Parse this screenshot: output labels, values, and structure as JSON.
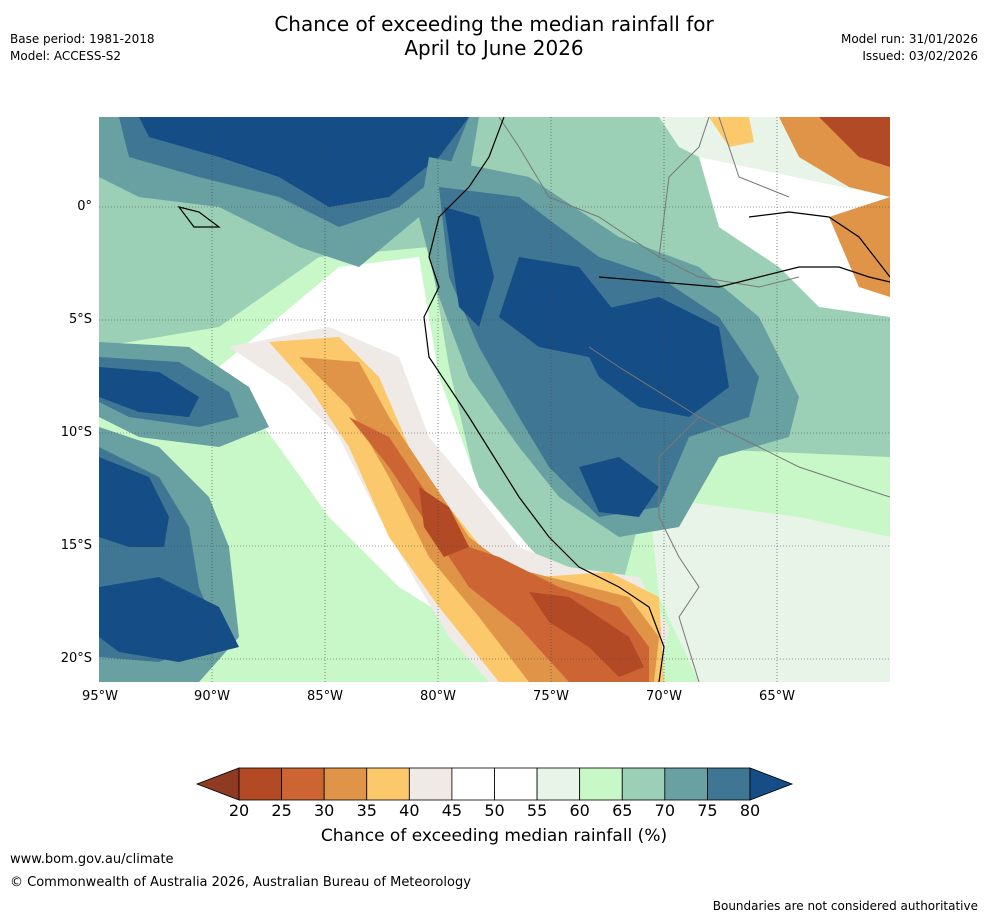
{
  "header": {
    "title_line1": "Chance of exceeding the median rainfall for",
    "title_line2": "April to June 2026",
    "base_period": "Base period: 1981-2018",
    "model": "Model: ACCESS-S2",
    "model_run": "Model run: 31/01/2026",
    "issued": "Issued: 03/02/2026"
  },
  "map": {
    "lat_ticks": [
      "0°",
      "5°S",
      "10°S",
      "15°S",
      "20°S"
    ],
    "lon_ticks": [
      "95°W",
      "90°W",
      "85°W",
      "80°W",
      "75°W",
      "70°W",
      "65°W"
    ]
  },
  "colorbar": {
    "labels": [
      "20",
      "25",
      "30",
      "35",
      "40",
      "45",
      "50",
      "55",
      "60",
      "65",
      "70",
      "75",
      "80"
    ],
    "colors": [
      "#8f3a22",
      "#b34a26",
      "#cc6533",
      "#df9447",
      "#fbc86b",
      "#efeae6",
      "#ffffff",
      "#ffffff",
      "#e8f4e8",
      "#c8f8c8",
      "#9bd0b6",
      "#69a0a2",
      "#3f7694",
      "#154d86"
    ],
    "title": "Chance of exceeding median rainfall (%)"
  },
  "footer": {
    "website": "www.bom.gov.au/climate",
    "copyright": "© Commonwealth of Australia 2026, Australian Bureau of Meteorology",
    "disclaimer": "Boundaries are not considered authoritative"
  }
}
